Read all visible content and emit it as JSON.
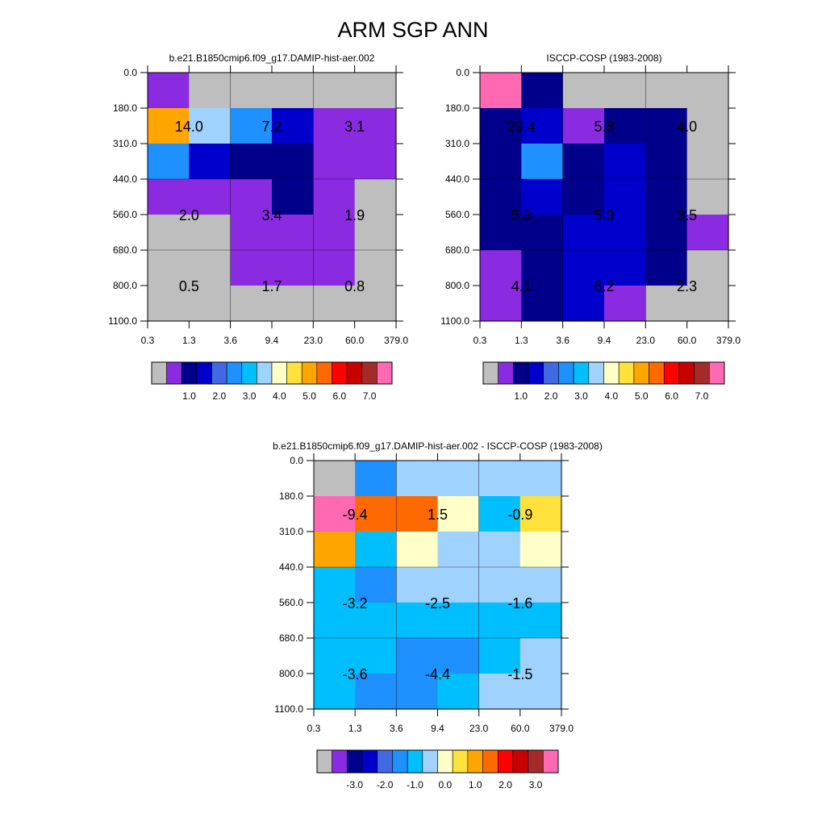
{
  "title": "ARM SGP ANN",
  "chart_data": [
    {
      "type": "heatmap",
      "title": "b.e21.B1850cmip6.f09_g17.DAMIP-hist-aer.002",
      "x_ticks": [
        "0.3",
        "1.3",
        "3.6",
        "9.4",
        "23.0",
        "60.0",
        "379.0"
      ],
      "y_ticks": [
        "0.0",
        "180.0",
        "310.0",
        "440.0",
        "560.0",
        "680.0",
        "800.0",
        "1100.0"
      ],
      "cell_colors": [
        [
          "#8a2be2",
          "#bebebe",
          "#bebebe",
          "#bebebe",
          "#bebebe",
          "#bebebe"
        ],
        [
          "#ffa500",
          "#a0d2ff",
          "#1e90ff",
          "#0000cd",
          "#8a2be2",
          "#8a2be2"
        ],
        [
          "#1e90ff",
          "#0000cd",
          "#00008b",
          "#00008b",
          "#8a2be2",
          "#8a2be2"
        ],
        [
          "#8a2be2",
          "#8a2be2",
          "#8a2be2",
          "#00008b",
          "#8a2be2",
          "#bebebe"
        ],
        [
          "#bebebe",
          "#bebebe",
          "#8a2be2",
          "#8a2be2",
          "#8a2be2",
          "#bebebe"
        ],
        [
          "#bebebe",
          "#bebebe",
          "#8a2be2",
          "#8a2be2",
          "#8a2be2",
          "#bebebe"
        ],
        [
          "#bebebe",
          "#bebebe",
          "#bebebe",
          "#bebebe",
          "#bebebe",
          "#bebebe"
        ]
      ],
      "box_labels": [
        [
          "14.0",
          "7.2",
          "3.1"
        ],
        [
          "2.0",
          "3.4",
          "1.9"
        ],
        [
          "0.5",
          "1.7",
          "0.8"
        ]
      ],
      "colorbar": {
        "colors": [
          "#bebebe",
          "#8a2be2",
          "#00008b",
          "#0000cd",
          "#4169e1",
          "#1e90ff",
          "#00bfff",
          "#a0d2ff",
          "#ffffc8",
          "#ffe13c",
          "#ffa500",
          "#ff6a00",
          "#ff0000",
          "#c80000",
          "#a52a2a",
          "#ff69b4"
        ],
        "labels": [
          "1.0",
          "2.0",
          "3.0",
          "4.0",
          "5.0",
          "6.0",
          "7.0"
        ]
      }
    },
    {
      "type": "heatmap",
      "title": "ISCCP-COSP (1983-2008)",
      "x_ticks": [
        "0.3",
        "1.3",
        "3.6",
        "9.4",
        "23.0",
        "60.0",
        "379.0"
      ],
      "y_ticks": [
        "0.0",
        "180.0",
        "310.0",
        "440.0",
        "560.0",
        "680.0",
        "800.0",
        "1100.0"
      ],
      "cell_colors": [
        [
          "#ff69b4",
          "#00008b",
          "#bebebe",
          "#bebebe",
          "#bebebe",
          "#bebebe"
        ],
        [
          "#00008b",
          "#0000cd",
          "#8a2be2",
          "#00008b",
          "#00008b",
          "#bebebe"
        ],
        [
          "#00008b",
          "#1e90ff",
          "#00008b",
          "#0000cd",
          "#00008b",
          "#bebebe"
        ],
        [
          "#00008b",
          "#0000cd",
          "#00008b",
          "#0000cd",
          "#00008b",
          "#bebebe"
        ],
        [
          "#00008b",
          "#00008b",
          "#0000cd",
          "#0000cd",
          "#00008b",
          "#8a2be2"
        ],
        [
          "#8a2be2",
          "#00008b",
          "#0000cd",
          "#0000cd",
          "#00008b",
          "#bebebe"
        ],
        [
          "#8a2be2",
          "#00008b",
          "#0000cd",
          "#8a2be2",
          "#bebebe",
          "#bebebe"
        ]
      ],
      "box_labels": [
        [
          "23.4",
          "5.8",
          "4.0"
        ],
        [
          "5.3",
          "5.9",
          "3.5"
        ],
        [
          "4.1",
          "6.2",
          "2.3"
        ]
      ],
      "colorbar": {
        "colors": [
          "#bebebe",
          "#8a2be2",
          "#00008b",
          "#0000cd",
          "#4169e1",
          "#1e90ff",
          "#00bfff",
          "#a0d2ff",
          "#ffffc8",
          "#ffe13c",
          "#ffa500",
          "#ff6a00",
          "#ff0000",
          "#c80000",
          "#a52a2a",
          "#ff69b4"
        ],
        "labels": [
          "1.0",
          "2.0",
          "3.0",
          "4.0",
          "5.0",
          "6.0",
          "7.0"
        ]
      }
    },
    {
      "type": "heatmap",
      "title": "b.e21.B1850cmip6.f09_g17.DAMIP-hist-aer.002 - ISCCP-COSP (1983-2008)",
      "x_ticks": [
        "0.3",
        "1.3",
        "3.6",
        "9.4",
        "23.0",
        "60.0",
        "379.0"
      ],
      "y_ticks": [
        "0.0",
        "180.0",
        "310.0",
        "440.0",
        "560.0",
        "680.0",
        "800.0",
        "1100.0"
      ],
      "cell_colors": [
        [
          "#bebebe",
          "#1e90ff",
          "#a0d2ff",
          "#a0d2ff",
          "#a0d2ff",
          "#a0d2ff"
        ],
        [
          "#ff69b4",
          "#ff6a00",
          "#ff6a00",
          "#ffffc8",
          "#00bfff",
          "#ffe13c"
        ],
        [
          "#ffa500",
          "#00bfff",
          "#ffffc8",
          "#a0d2ff",
          "#a0d2ff",
          "#ffffc8"
        ],
        [
          "#00bfff",
          "#1e90ff",
          "#a0d2ff",
          "#a0d2ff",
          "#a0d2ff",
          "#a0d2ff"
        ],
        [
          "#00bfff",
          "#00bfff",
          "#00bfff",
          "#00bfff",
          "#00bfff",
          "#00bfff"
        ],
        [
          "#00bfff",
          "#00bfff",
          "#1e90ff",
          "#1e90ff",
          "#00bfff",
          "#a0d2ff"
        ],
        [
          "#00bfff",
          "#1e90ff",
          "#1e90ff",
          "#00bfff",
          "#a0d2ff",
          "#a0d2ff"
        ]
      ],
      "box_labels": [
        [
          "-9.4",
          "1.5",
          "-0.9"
        ],
        [
          "-3.2",
          "-2.5",
          "-1.6"
        ],
        [
          "-3.6",
          "-4.4",
          "-1.5"
        ]
      ],
      "colorbar": {
        "colors": [
          "#bebebe",
          "#8a2be2",
          "#00008b",
          "#0000cd",
          "#4169e1",
          "#1e90ff",
          "#00bfff",
          "#a0d2ff",
          "#ffffc8",
          "#ffe13c",
          "#ffa500",
          "#ff6a00",
          "#ff0000",
          "#c80000",
          "#a52a2a",
          "#ff69b4"
        ],
        "labels": [
          "-3.0",
          "-2.0",
          "-1.0",
          "0.0",
          "1.0",
          "2.0",
          "3.0"
        ]
      }
    }
  ]
}
